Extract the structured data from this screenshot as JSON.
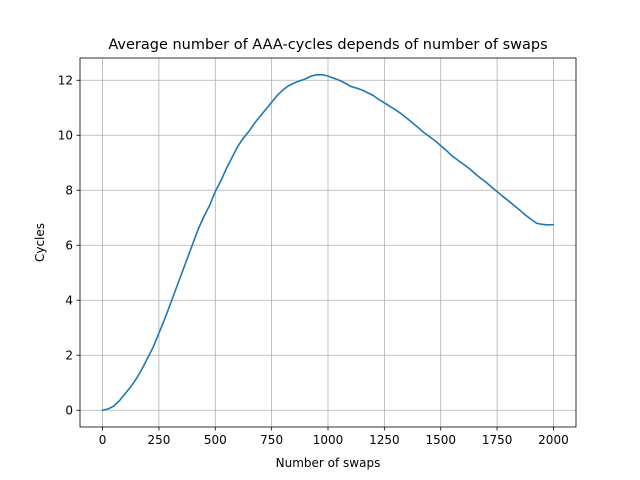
{
  "chart_data": {
    "type": "line",
    "title": "Average number of AAA-cycles depends of number of swaps",
    "xlabel": "Number of swaps",
    "ylabel": "Cycles",
    "xlim": [
      -100,
      2100
    ],
    "ylim": [
      -0.61,
      12.81
    ],
    "xticks": [
      0,
      250,
      500,
      750,
      1000,
      1250,
      1500,
      1750,
      2000
    ],
    "xtick_labels": [
      "0",
      "250",
      "500",
      "750",
      "1000",
      "1250",
      "1500",
      "1750",
      "2000"
    ],
    "yticks": [
      0,
      2,
      4,
      6,
      8,
      10,
      12
    ],
    "ytick_labels": [
      "0",
      "2",
      "4",
      "6",
      "8",
      "10",
      "12"
    ],
    "grid": true,
    "legend": "none",
    "line_color": "#1f77b4",
    "series": [
      {
        "x": [
          0,
          25,
          50,
          75,
          100,
          125,
          150,
          175,
          200,
          225,
          250,
          275,
          300,
          325,
          350,
          375,
          400,
          425,
          450,
          475,
          500,
          525,
          550,
          575,
          600,
          625,
          650,
          675,
          700,
          725,
          750,
          775,
          800,
          825,
          850,
          875,
          900,
          925,
          950,
          975,
          1000,
          1025,
          1050,
          1075,
          1100,
          1125,
          1150,
          1175,
          1200,
          1225,
          1250,
          1275,
          1300,
          1325,
          1350,
          1375,
          1400,
          1425,
          1450,
          1475,
          1500,
          1525,
          1550,
          1575,
          1600,
          1625,
          1650,
          1675,
          1700,
          1725,
          1750,
          1775,
          1800,
          1825,
          1850,
          1875,
          1900,
          1925,
          1950,
          1975,
          2000
        ],
        "values": [
          0.0,
          0.05,
          0.15,
          0.35,
          0.6,
          0.85,
          1.15,
          1.5,
          1.9,
          2.3,
          2.8,
          3.3,
          3.85,
          4.4,
          4.95,
          5.5,
          6.05,
          6.6,
          7.05,
          7.45,
          7.95,
          8.35,
          8.8,
          9.2,
          9.6,
          9.9,
          10.15,
          10.45,
          10.7,
          10.95,
          11.2,
          11.45,
          11.65,
          11.8,
          11.9,
          11.98,
          12.05,
          12.15,
          12.2,
          12.2,
          12.15,
          12.08,
          12.0,
          11.9,
          11.78,
          11.72,
          11.65,
          11.55,
          11.45,
          11.3,
          11.18,
          11.05,
          10.92,
          10.78,
          10.62,
          10.45,
          10.28,
          10.1,
          9.95,
          9.8,
          9.62,
          9.45,
          9.25,
          9.1,
          8.95,
          8.8,
          8.62,
          8.45,
          8.3,
          8.12,
          7.95,
          7.78,
          7.62,
          7.45,
          7.28,
          7.1,
          6.95,
          6.8,
          6.76,
          6.74,
          6.75
        ]
      }
    ]
  }
}
